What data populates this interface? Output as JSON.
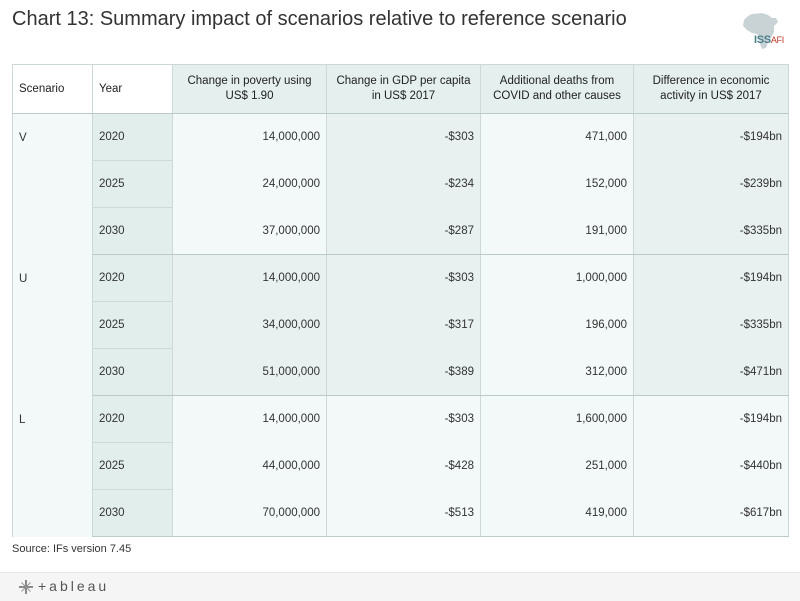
{
  "title": "Chart 13: Summary impact of scenarios relative to reference scenario",
  "logo": {
    "main": "ISS",
    "sub": "AFI"
  },
  "source": "Source: IFs version 7.45",
  "footer": {
    "brand": "+ableau"
  },
  "chart_data": {
    "type": "table",
    "columns": [
      "Scenario",
      "Year",
      "Change in poverty using US$ 1.90",
      "Change in GDP per capita in US$ 2017",
      "Additional deaths from COVID and other causes",
      "Difference in economic activity in US$ 2017"
    ],
    "groups": [
      {
        "scenario": "V",
        "rows": [
          {
            "year": "2020",
            "poverty": "14,000,000",
            "gdp": "-$303",
            "deaths": "471,000",
            "econ": "-$194bn"
          },
          {
            "year": "2025",
            "poverty": "24,000,000",
            "gdp": "-$234",
            "deaths": "152,000",
            "econ": "-$239bn"
          },
          {
            "year": "2030",
            "poverty": "37,000,000",
            "gdp": "-$287",
            "deaths": "191,000",
            "econ": "-$335bn"
          }
        ]
      },
      {
        "scenario": "U",
        "rows": [
          {
            "year": "2020",
            "poverty": "14,000,000",
            "gdp": "-$303",
            "deaths": "1,000,000",
            "econ": "-$194bn"
          },
          {
            "year": "2025",
            "poverty": "34,000,000",
            "gdp": "-$317",
            "deaths": "196,000",
            "econ": "-$335bn"
          },
          {
            "year": "2030",
            "poverty": "51,000,000",
            "gdp": "-$389",
            "deaths": "312,000",
            "econ": "-$471bn"
          }
        ]
      },
      {
        "scenario": "L",
        "rows": [
          {
            "year": "2020",
            "poverty": "14,000,000",
            "gdp": "-$303",
            "deaths": "1,600,000",
            "econ": "-$194bn"
          },
          {
            "year": "2025",
            "poverty": "44,000,000",
            "gdp": "-$428",
            "deaths": "251,000",
            "econ": "-$440bn"
          },
          {
            "year": "2030",
            "poverty": "70,000,000",
            "gdp": "-$513",
            "deaths": "419,000",
            "econ": "-$617bn"
          }
        ]
      }
    ]
  }
}
